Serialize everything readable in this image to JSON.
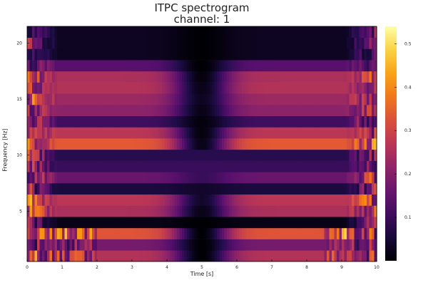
{
  "chart_data": {
    "type": "heatmap",
    "title": "ITPC spectrogram",
    "subtitle": "channel: 1",
    "xlabel": "Time [s]",
    "ylabel": "Frequency [Hz]",
    "xlim": [
      0,
      10
    ],
    "ylim": [
      0.5,
      21.5
    ],
    "x_ticks": [
      "0",
      "1",
      "2",
      "3",
      "4",
      "5",
      "6",
      "7",
      "8",
      "9",
      "10"
    ],
    "y_ticks": [
      {
        "value": 5,
        "label": "5"
      },
      {
        "value": 10,
        "label": "10"
      },
      {
        "value": 15,
        "label": "15"
      },
      {
        "value": 20,
        "label": "20"
      }
    ],
    "colorbar": {
      "colormap": "inferno",
      "range": [
        0,
        0.54
      ],
      "ticks": [
        "0.1",
        "0.2",
        "0.3",
        "0.4",
        "0.5"
      ],
      "tick_values": [
        0.1,
        0.2,
        0.3,
        0.4,
        0.5
      ]
    },
    "frequencies_hz": [
      1,
      2,
      3,
      4,
      5,
      6,
      7,
      8,
      9,
      10,
      11,
      12,
      13,
      14,
      15,
      16,
      17,
      18,
      19,
      20,
      21
    ],
    "row_profiles": [
      {
        "freq": 1,
        "mid": 0.26,
        "dip": 0.0,
        "edge": 0.22
      },
      {
        "freq": 2,
        "mid": 0.18,
        "dip": 0.0,
        "edge": 0.18
      },
      {
        "freq": 3,
        "mid": 0.33,
        "dip": 0.0,
        "edge": 0.24
      },
      {
        "freq": 4,
        "mid": 0.02,
        "dip": 0.0,
        "edge": 0.2
      },
      {
        "freq": 5,
        "mid": 0.25,
        "dip": 0.02,
        "edge": 0.28
      },
      {
        "freq": 6,
        "mid": 0.27,
        "dip": 0.04,
        "edge": 0.3
      },
      {
        "freq": 7,
        "mid": 0.06,
        "dip": 0.04,
        "edge": 0.22
      },
      {
        "freq": 8,
        "mid": 0.16,
        "dip": 0.1,
        "edge": 0.25
      },
      {
        "freq": 9,
        "mid": 0.1,
        "dip": 0.1,
        "edge": 0.22
      },
      {
        "freq": 10,
        "mid": 0.08,
        "dip": 0.08,
        "edge": 0.25
      },
      {
        "freq": 11,
        "mid": 0.34,
        "dip": 0.02,
        "edge": 0.28
      },
      {
        "freq": 12,
        "mid": 0.27,
        "dip": 0.01,
        "edge": 0.22
      },
      {
        "freq": 13,
        "mid": 0.11,
        "dip": 0.01,
        "edge": 0.26
      },
      {
        "freq": 14,
        "mid": 0.21,
        "dip": 0.02,
        "edge": 0.22
      },
      {
        "freq": 15,
        "mid": 0.23,
        "dip": 0.03,
        "edge": 0.3
      },
      {
        "freq": 16,
        "mid": 0.26,
        "dip": 0.02,
        "edge": 0.22
      },
      {
        "freq": 17,
        "mid": 0.25,
        "dip": 0.01,
        "edge": 0.25
      },
      {
        "freq": 18,
        "mid": 0.14,
        "dip": 0.0,
        "edge": 0.2
      },
      {
        "freq": 19,
        "mid": 0.03,
        "dip": 0.0,
        "edge": 0.16
      },
      {
        "freq": 20,
        "mid": 0.03,
        "dip": 0.0,
        "edge": 0.22
      },
      {
        "freq": 21,
        "mid": 0.03,
        "dip": 0.0,
        "edge": 0.18
      }
    ]
  }
}
